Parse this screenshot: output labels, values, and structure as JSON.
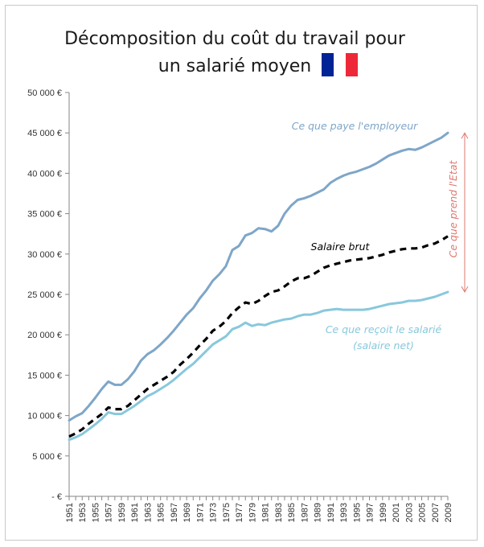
{
  "chart_data": {
    "type": "line",
    "title_line1": "Décomposition du coût du travail pour",
    "title_line2": "un salarié moyen",
    "flag_colors": [
      "#002395",
      "#ffffff",
      "#ed2939"
    ],
    "ylim": [
      0,
      50000
    ],
    "y_ticks": [
      {
        "value": 0,
        "label": "- €"
      },
      {
        "value": 5000,
        "label": "5 000 €"
      },
      {
        "value": 10000,
        "label": "10 000 €"
      },
      {
        "value": 15000,
        "label": "15 000 €"
      },
      {
        "value": 20000,
        "label": "20 000 €"
      },
      {
        "value": 25000,
        "label": "25 000 €"
      },
      {
        "value": 30000,
        "label": "30 000 €"
      },
      {
        "value": 35000,
        "label": "35 000 €"
      },
      {
        "value": 40000,
        "label": "40 000 €"
      },
      {
        "value": 45000,
        "label": "45 000 €"
      },
      {
        "value": 50000,
        "label": "50 000 €"
      }
    ],
    "x": [
      1951,
      1952,
      1953,
      1954,
      1955,
      1956,
      1957,
      1958,
      1959,
      1960,
      1961,
      1962,
      1963,
      1964,
      1965,
      1966,
      1967,
      1968,
      1969,
      1970,
      1971,
      1972,
      1973,
      1974,
      1975,
      1976,
      1977,
      1978,
      1979,
      1980,
      1981,
      1982,
      1983,
      1984,
      1985,
      1986,
      1987,
      1988,
      1989,
      1990,
      1991,
      1992,
      1993,
      1994,
      1995,
      1996,
      1997,
      1998,
      1999,
      2000,
      2001,
      2002,
      2003,
      2004,
      2005,
      2006,
      2007,
      2008,
      2009
    ],
    "x_tick_labels": [
      "1951",
      "1953",
      "1955",
      "1957",
      "1959",
      "1961",
      "1963",
      "1965",
      "1967",
      "1969",
      "1971",
      "1973",
      "1975",
      "1977",
      "1979",
      "1981",
      "1983",
      "1985",
      "1987",
      "1989",
      "1991",
      "1993",
      "1995",
      "1997",
      "1999",
      "2001",
      "2003",
      "2005",
      "2007",
      "2009"
    ],
    "series": [
      {
        "name": "Ce que paye l'employeur",
        "color": "#7ea6c8",
        "dashed": false,
        "values": [
          9400,
          9900,
          10300,
          11200,
          12200,
          13300,
          14200,
          13800,
          13800,
          14500,
          15500,
          16800,
          17600,
          18100,
          18800,
          19600,
          20500,
          21500,
          22500,
          23300,
          24500,
          25500,
          26700,
          27500,
          28500,
          30500,
          31000,
          32300,
          32600,
          33200,
          33100,
          32800,
          33500,
          35000,
          36000,
          36700,
          36900,
          37200,
          37600,
          38000,
          38800,
          39300,
          39700,
          40000,
          40200,
          40500,
          40800,
          41200,
          41700,
          42200,
          42500,
          42800,
          43000,
          42900,
          43200,
          43600,
          44000,
          44400,
          45000
        ]
      },
      {
        "name": "Salaire brut",
        "color": "#000000",
        "dashed": true,
        "values": [
          7400,
          7800,
          8300,
          9000,
          9600,
          10200,
          11000,
          10800,
          10800,
          11200,
          11900,
          12600,
          13300,
          13800,
          14300,
          14800,
          15400,
          16300,
          17000,
          17800,
          18700,
          19500,
          20500,
          21000,
          21700,
          22700,
          23400,
          24000,
          23800,
          24200,
          24800,
          25300,
          25500,
          26000,
          26600,
          27000,
          27000,
          27300,
          27800,
          28300,
          28600,
          28800,
          29000,
          29200,
          29300,
          29400,
          29500,
          29700,
          29900,
          30200,
          30400,
          30600,
          30700,
          30700,
          30800,
          31100,
          31300,
          31700,
          32200
        ]
      },
      {
        "name": "Ce que reçoit le salarié (salaire net)",
        "color": "#88c8dc",
        "dashed": false,
        "values": [
          7000,
          7300,
          7700,
          8300,
          8900,
          9600,
          10400,
          10200,
          10200,
          10700,
          11200,
          11800,
          12400,
          12800,
          13300,
          13800,
          14400,
          15100,
          15800,
          16400,
          17200,
          18000,
          18800,
          19300,
          19800,
          20700,
          21000,
          21500,
          21100,
          21300,
          21200,
          21500,
          21700,
          21900,
          22000,
          22300,
          22500,
          22500,
          22700,
          23000,
          23100,
          23200,
          23100,
          23100,
          23100,
          23100,
          23200,
          23400,
          23600,
          23800,
          23900,
          24000,
          24200,
          24200,
          24300,
          24500,
          24700,
          25000,
          25300
        ]
      }
    ],
    "annotations": {
      "employer_label": "Ce que paye l'employeur",
      "brut_label": "Salaire brut",
      "net_label_line1": "Ce que reçoit le salarié",
      "net_label_line2": "(salaire net)",
      "state_label": "Ce que prend l'Etat",
      "state_color": "#e07a72"
    },
    "grid": false
  }
}
